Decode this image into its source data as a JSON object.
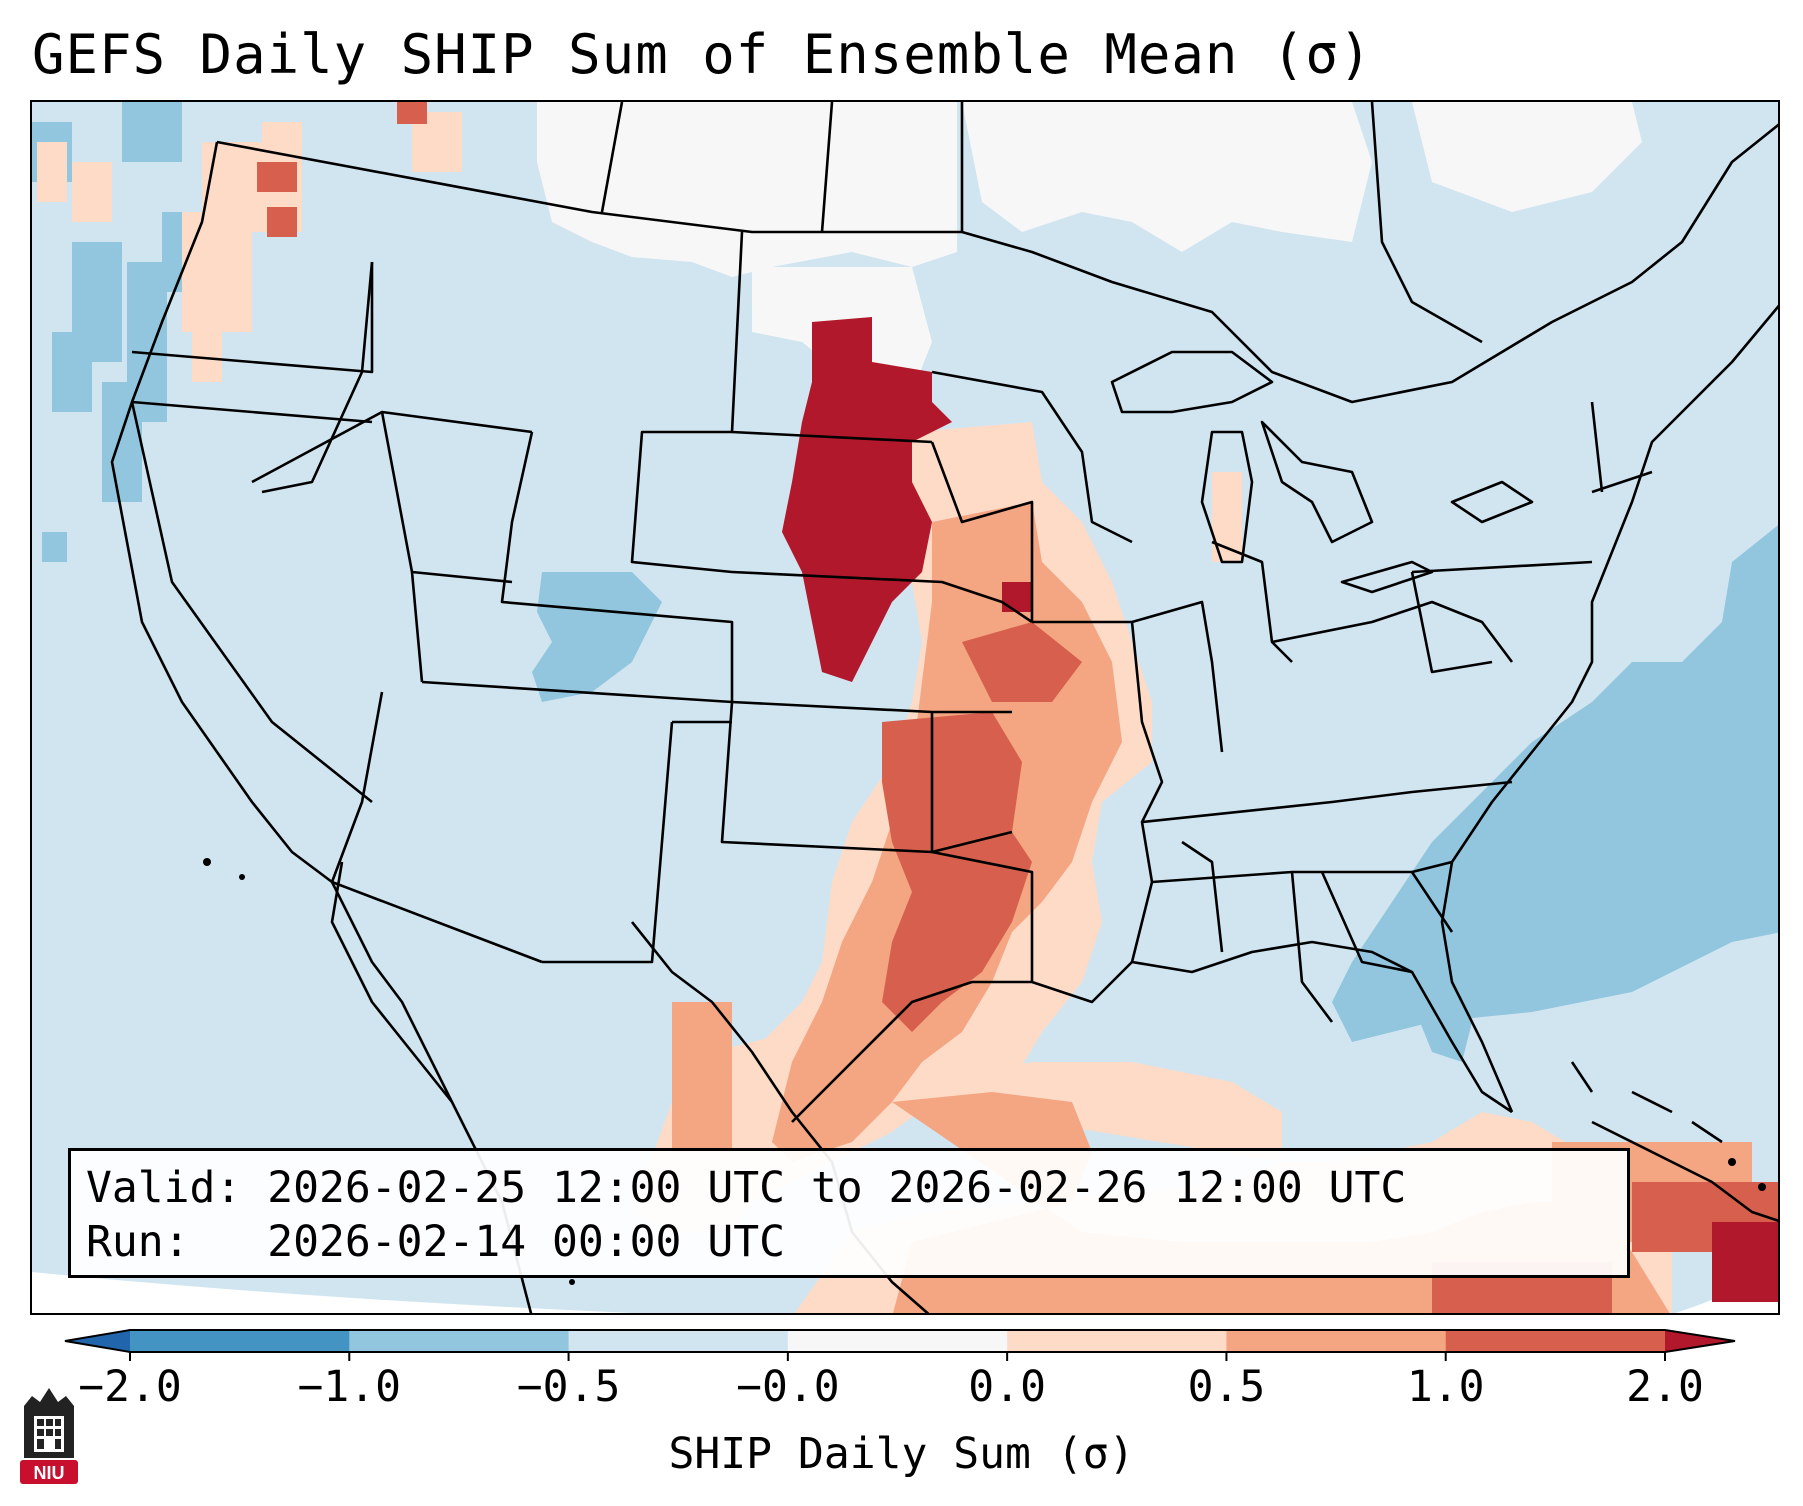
{
  "title": "GEFS Daily SHIP Sum of Ensemble Mean (σ)",
  "info": {
    "valid_label": "Valid:",
    "valid_value": "2026-02-25 12:00 UTC to 2026-02-26 12:00 UTC",
    "run_label": "Run:",
    "run_value": "2026-02-14 00:00 UTC"
  },
  "colorbar": {
    "label": "SHIP Daily Sum (σ)",
    "ticks": [
      "−2.0",
      "−1.0",
      "−0.5",
      "−0.0",
      "0.0",
      "0.5",
      "1.0",
      "2.0"
    ],
    "bins": [
      "#2166ac",
      "#4393c3",
      "#92c5de",
      "#d1e5f0",
      "#f7f7f7",
      "#fddbc7",
      "#f4a582",
      "#d6604d",
      "#b2182b"
    ],
    "extend": "both"
  },
  "logo": {
    "text": "NIU",
    "color": "#c8102e"
  },
  "map": {
    "projection": "Lambert conformal, CONUS + northern Mexico + Caribbean",
    "background_bin": "#d1e5f0",
    "regions": [
      {
        "name": "Northern Plains / Dakotas",
        "bin": "#b2182b"
      },
      {
        "name": "Central & Southern Plains, lower Mississippi Valley",
        "bin": "#f4a582"
      },
      {
        "name": "Kansas / Oklahoma / Arkansas core",
        "bin": "#d6604d"
      },
      {
        "name": "Texas Gulf coast and Gulf of Mexico",
        "bin": "#f4a582"
      },
      {
        "name": "Cuba / Hispaniola / Caribbean",
        "bin": "#d6604d"
      },
      {
        "name": "Pacific Northwest coast",
        "bin": "#fddbc7"
      },
      {
        "name": "Western Atlantic off Southeast coast",
        "bin": "#92c5de"
      },
      {
        "name": "Southern Canada (north of Montana / Dakotas)",
        "bin": "#f7f7f7"
      },
      {
        "name": "Southern Colorado",
        "bin": "#92c5de"
      }
    ]
  }
}
